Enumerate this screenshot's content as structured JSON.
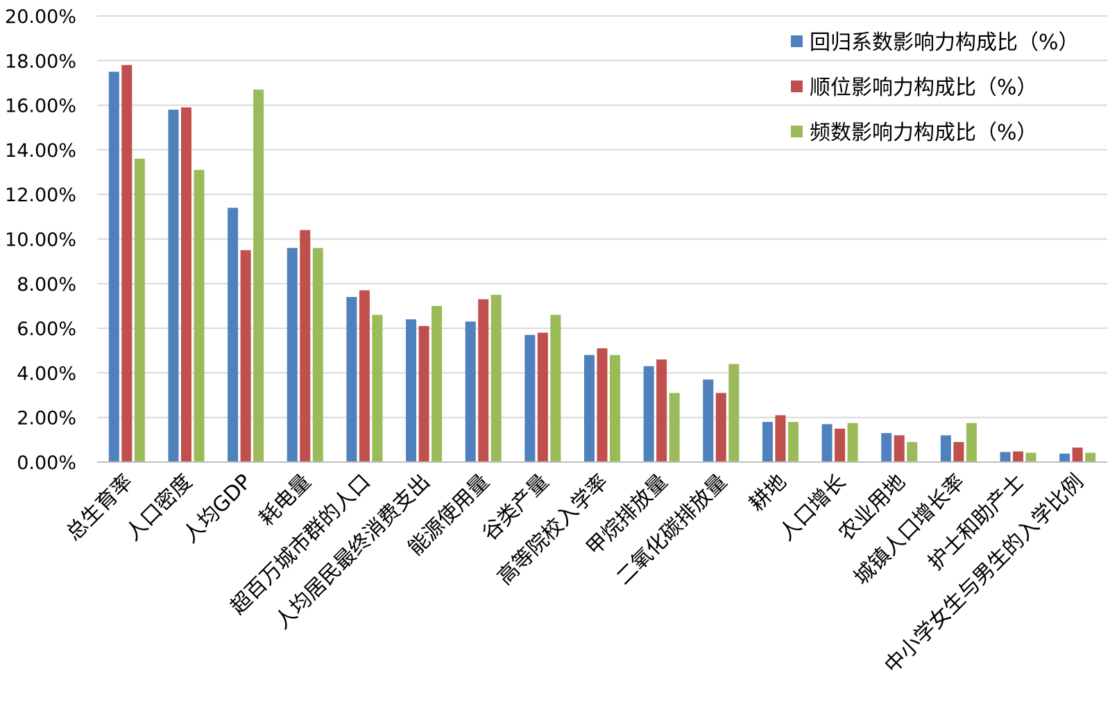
{
  "chart_data": {
    "type": "bar",
    "categories": [
      "总生育率",
      "人口密度",
      "人均GDP",
      "耗电量",
      "超百万城市群的人口",
      "人均居民最终消费支出",
      "能源使用量",
      "谷类产量",
      "高等院校入学率",
      "甲烷排放量",
      "二氧化碳排放量",
      "耕地",
      "人口增长",
      "农业用地",
      "城镇人口增长率",
      "护士和助产士",
      "中小学女生与男生的入学比例"
    ],
    "series": [
      {
        "name": "回归系数影响力构成比（%）",
        "color": "#4f81bd",
        "values": [
          17.5,
          15.8,
          11.4,
          9.6,
          7.4,
          6.4,
          6.3,
          5.7,
          4.8,
          4.3,
          3.7,
          1.8,
          1.7,
          1.3,
          1.2,
          0.45,
          0.38
        ]
      },
      {
        "name": "顺位影响力构成比（%）",
        "color": "#c0504d",
        "values": [
          17.8,
          15.9,
          9.5,
          10.4,
          7.7,
          6.1,
          7.3,
          5.8,
          5.1,
          4.6,
          3.1,
          2.1,
          1.5,
          1.2,
          0.9,
          0.48,
          0.65
        ]
      },
      {
        "name": "频数影响力构成比（%）",
        "color": "#9bbb59",
        "values": [
          13.6,
          13.1,
          16.7,
          9.6,
          6.6,
          7.0,
          7.5,
          6.6,
          4.8,
          3.1,
          4.4,
          1.8,
          1.75,
          0.9,
          1.75,
          0.42,
          0.42
        ]
      }
    ],
    "yticks": [
      "0.00%",
      "2.00%",
      "4.00%",
      "6.00%",
      "8.00%",
      "10.00%",
      "12.00%",
      "14.00%",
      "16.00%",
      "18.00%",
      "20.00%"
    ],
    "ylim": [
      0,
      20
    ],
    "grid": true,
    "legend_position": "top-right"
  }
}
